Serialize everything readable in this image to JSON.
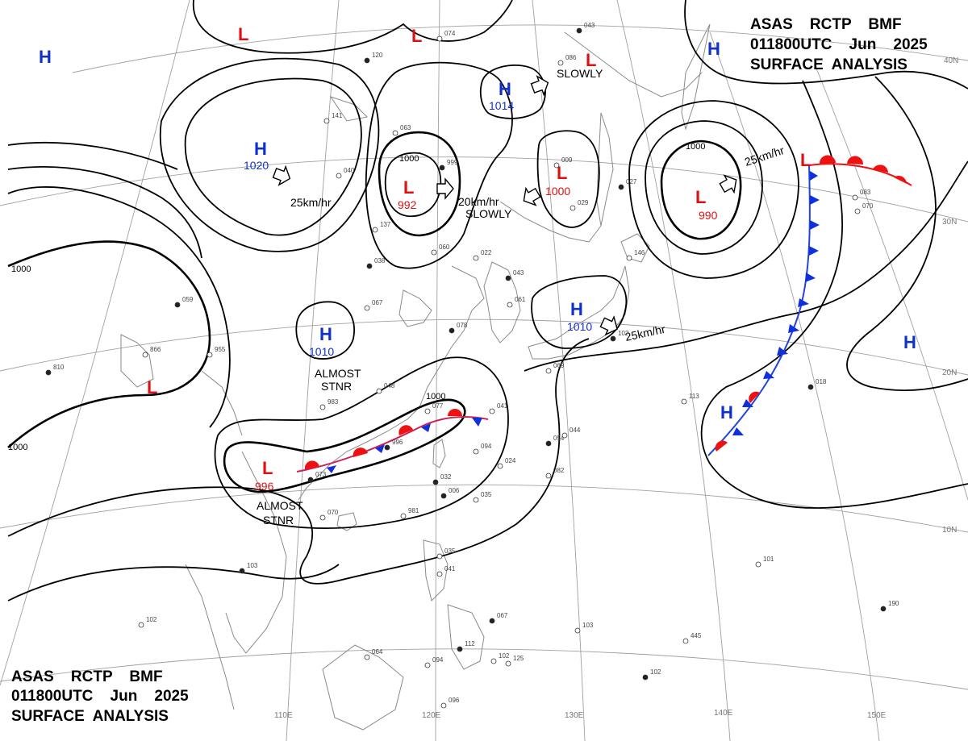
{
  "header": {
    "line1": "ASAS    RCTP    BMF",
    "line2": "011800UTC    Jun    2025",
    "line3": "SURFACE  ANALYSIS"
  },
  "colors": {
    "high": "#1030cc",
    "low": "#dd1111",
    "isobar": "#000000",
    "coast": "#888888",
    "grid": "#999999",
    "warm_front": "#ee1111",
    "cold_front": "#1030dd"
  },
  "pressure_systems": [
    {
      "id": "high-nw",
      "type": "H",
      "pressure": ""
    },
    {
      "id": "low-north-1",
      "type": "L",
      "pressure": ""
    },
    {
      "id": "low-north-2",
      "type": "L",
      "pressure": ""
    },
    {
      "id": "high-mongolia",
      "type": "H",
      "pressure": "1020"
    },
    {
      "id": "low-manchuria",
      "type": "L",
      "pressure": "992"
    },
    {
      "id": "high-okhotsk-west",
      "type": "H",
      "pressure": "1014"
    },
    {
      "id": "low-okhotsk",
      "type": "L",
      "pressure": ""
    },
    {
      "id": "low-sea-of-japan",
      "type": "L",
      "pressure": "1000"
    },
    {
      "id": "high-far-north",
      "type": "H",
      "pressure": ""
    },
    {
      "id": "low-pacific-north",
      "type": "L",
      "pressure": "990"
    },
    {
      "id": "high-china",
      "type": "H",
      "pressure": "1010"
    },
    {
      "id": "high-japan",
      "type": "H",
      "pressure": "1010"
    },
    {
      "id": "low-tibet",
      "type": "L",
      "pressure": ""
    },
    {
      "id": "low-south-china",
      "type": "L",
      "pressure": "996"
    },
    {
      "id": "low-pacific-front",
      "type": "L",
      "pressure": ""
    },
    {
      "id": "high-pacific-east",
      "type": "H",
      "pressure": ""
    },
    {
      "id": "high-pacific-south",
      "type": "H",
      "pressure": ""
    }
  ],
  "motion_notes": [
    {
      "id": "mongolia-speed",
      "text": "25km/hr"
    },
    {
      "id": "manchuria-speed",
      "text": "20km/hr"
    },
    {
      "id": "manchuria-slowly",
      "text": "SLOWLY"
    },
    {
      "id": "okhotsk-slowly",
      "text": "SLOWLY"
    },
    {
      "id": "pacific-speed",
      "text": "25km/hr"
    },
    {
      "id": "japan-speed",
      "text": "25km/hr"
    },
    {
      "id": "china-stnr-1",
      "text": "ALMOST"
    },
    {
      "id": "china-stnr-2",
      "text": "STNR"
    },
    {
      "id": "south-stnr-1",
      "text": "ALMOST"
    },
    {
      "id": "south-stnr-2",
      "text": "STNR"
    }
  ],
  "isobar_labels": [
    "1000",
    "1000",
    "1000",
    "1000",
    "1000"
  ],
  "longitude_labels": [
    "110E",
    "120E",
    "130E",
    "140E",
    "150E"
  ],
  "latitude_labels": [
    "40N",
    "30N",
    "20N",
    "10N"
  ],
  "station_numbers": [
    "120",
    "074",
    "086",
    "043",
    "141",
    "063",
    "999",
    "009",
    "029",
    "027",
    "040",
    "137",
    "038",
    "060",
    "022",
    "043",
    "061",
    "067",
    "059",
    "955",
    "866",
    "810",
    "983",
    "048",
    "078",
    "069",
    "077",
    "996",
    "094",
    "024",
    "032",
    "035",
    "041",
    "054",
    "044",
    "082",
    "073",
    "070",
    "981",
    "006",
    "035",
    "041",
    "067",
    "064",
    "094",
    "112",
    "102",
    "125",
    "102",
    "103",
    "101",
    "018",
    "113",
    "146",
    "102",
    "083",
    "070",
    "190",
    "445",
    "096",
    "103",
    "102"
  ]
}
